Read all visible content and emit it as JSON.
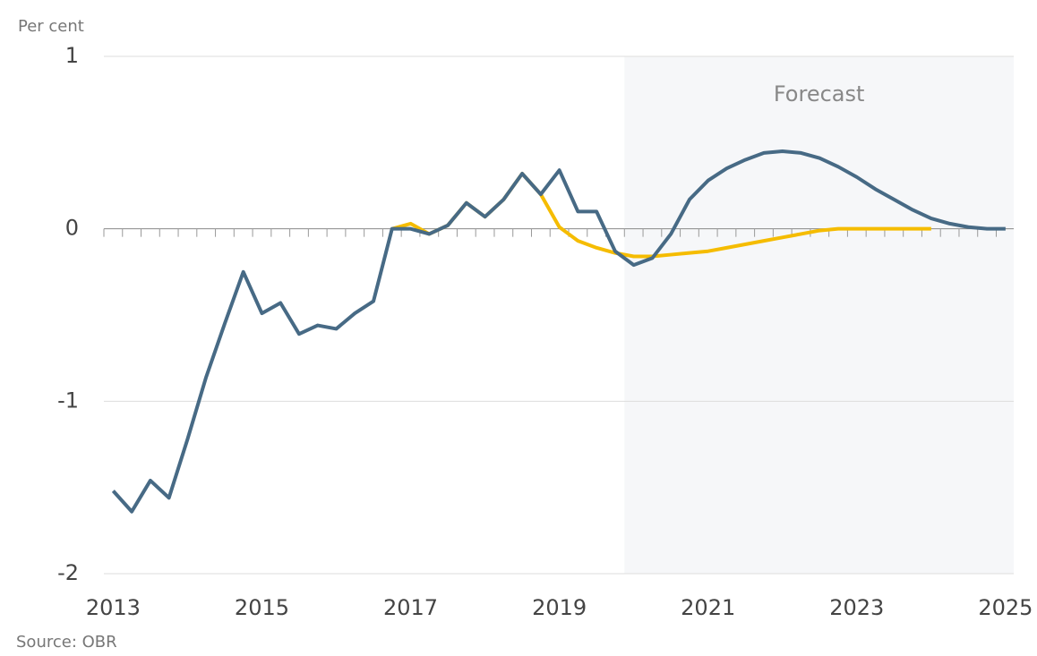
{
  "chart_data": {
    "type": "line",
    "y_label": "Per cent",
    "source": "Source: OBR",
    "forecast": {
      "label": "Forecast",
      "start_index": 28
    },
    "categories": [
      "2013",
      null,
      null,
      null,
      null,
      null,
      null,
      null,
      "2015",
      null,
      null,
      null,
      null,
      null,
      null,
      null,
      "2017",
      null,
      null,
      null,
      null,
      null,
      null,
      null,
      "2019",
      null,
      null,
      null,
      null,
      null,
      null,
      null,
      "2021",
      null,
      null,
      null,
      null,
      null,
      null,
      null,
      "2023",
      null,
      null,
      null,
      null,
      null,
      null,
      null,
      "2025"
    ],
    "series": [
      {
        "color": "#f5bc00",
        "values": [
          null,
          null,
          null,
          null,
          null,
          null,
          null,
          null,
          null,
          null,
          null,
          null,
          null,
          null,
          null,
          0.0,
          0.03,
          -0.03,
          0.02,
          0.15,
          0.07,
          0.17,
          0.32,
          0.2,
          0.01,
          -0.07,
          -0.11,
          -0.14,
          -0.16,
          -0.16,
          -0.15,
          -0.14,
          -0.13,
          -0.11,
          -0.09,
          -0.07,
          -0.05,
          -0.03,
          -0.01,
          0.0,
          0.0,
          0.0,
          0.0,
          0.0,
          0.0,
          null,
          null,
          null,
          null
        ]
      },
      {
        "color": "#476a85",
        "values": [
          -1.52,
          -1.64,
          -1.46,
          -1.56,
          -1.22,
          -0.86,
          -0.55,
          -0.25,
          -0.49,
          -0.43,
          -0.61,
          -0.56,
          -0.58,
          -0.49,
          -0.42,
          0.0,
          0.0,
          -0.03,
          0.02,
          0.15,
          0.07,
          0.17,
          0.32,
          0.2,
          0.34,
          0.1,
          0.1,
          -0.13,
          -0.21,
          -0.17,
          -0.03,
          0.17,
          0.28,
          0.35,
          0.4,
          0.44,
          0.45,
          0.44,
          0.41,
          0.36,
          0.3,
          0.23,
          0.17,
          0.11,
          0.06,
          0.03,
          0.01,
          0.0,
          0.0
        ]
      }
    ],
    "ylim": [
      -2,
      1
    ],
    "yticks": [
      -2,
      -1,
      0,
      1
    ],
    "grid": true
  }
}
